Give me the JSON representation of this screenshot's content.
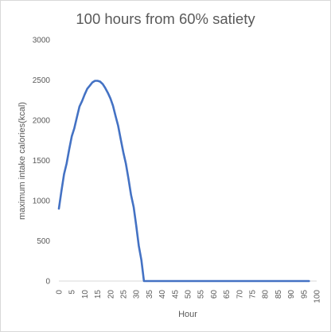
{
  "chart_data": {
    "type": "line",
    "title": "100 hours from 60% satiety",
    "xlabel": "Hour",
    "ylabel": "maximum intake calories(kcal)",
    "xlim": [
      0,
      100
    ],
    "ylim": [
      0,
      3000
    ],
    "x_ticks": [
      0,
      5,
      10,
      15,
      20,
      25,
      30,
      35,
      40,
      45,
      50,
      55,
      60,
      65,
      70,
      75,
      80,
      85,
      90,
      95,
      100
    ],
    "y_ticks": [
      0,
      500,
      1000,
      1500,
      2000,
      2500,
      3000
    ],
    "grid": false,
    "legend": "none",
    "series": [
      {
        "color": "#4472c4",
        "x": [
          0,
          1,
          2,
          3,
          4,
          5,
          6,
          7,
          8,
          9,
          10,
          11,
          12,
          13,
          14,
          15,
          16,
          17,
          18,
          19,
          20,
          21,
          22,
          23,
          24,
          25,
          26,
          27,
          28,
          29,
          30,
          31,
          32,
          33,
          34,
          35,
          36,
          37,
          38,
          39,
          40,
          41,
          42,
          43,
          44,
          45,
          46,
          50,
          55,
          60,
          65,
          70,
          75,
          80,
          85,
          90,
          95,
          97
        ],
        "values": [
          900,
          1120,
          1330,
          1460,
          1640,
          1800,
          1900,
          2040,
          2170,
          2240,
          2320,
          2390,
          2430,
          2470,
          2490,
          2490,
          2480,
          2450,
          2400,
          2340,
          2270,
          2180,
          2050,
          1930,
          1760,
          1600,
          1460,
          1270,
          1070,
          920,
          690,
          440,
          260,
          0,
          0,
          0,
          0,
          0,
          0,
          0,
          0,
          0,
          0,
          0,
          0,
          0,
          0,
          0,
          0,
          0,
          0,
          0,
          0,
          0,
          0,
          0,
          0,
          0
        ]
      }
    ]
  }
}
